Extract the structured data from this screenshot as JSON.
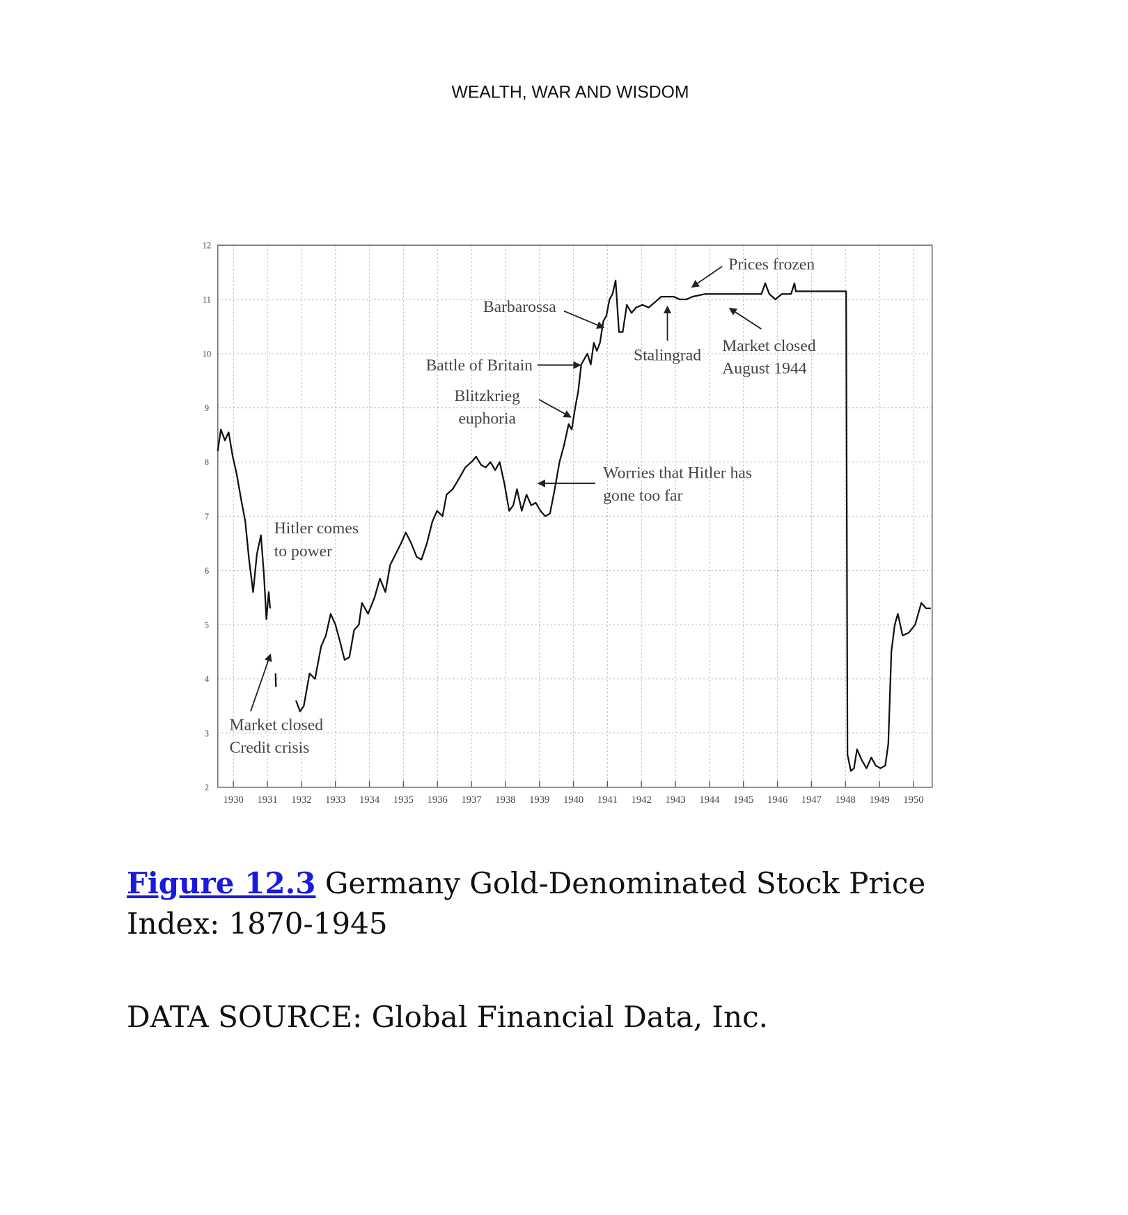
{
  "header": "WEALTH, WAR AND WISDOM",
  "figure_label": "Figure 12.3",
  "caption": "Germany Gold-Denominated Stock Price Index: 1870-1945",
  "source": "DATA SOURCE: Global Financial Data, Inc.",
  "chart_data": {
    "type": "line",
    "xlim": [
      1929.54,
      1950.55
    ],
    "ylim": [
      2,
      12
    ],
    "xticks": [
      1930,
      1931,
      1932,
      1933,
      1934,
      1935,
      1936,
      1937,
      1938,
      1939,
      1940,
      1941,
      1942,
      1943,
      1944,
      1945,
      1946,
      1947,
      1948,
      1949,
      1950
    ],
    "yticks": [
      2,
      3,
      4,
      5,
      6,
      7,
      8,
      9,
      10,
      11,
      12
    ],
    "grid": true,
    "series": [
      {
        "color": "#111111",
        "x": [
          1929.54,
          1929.63,
          1929.75,
          1929.86,
          1929.98,
          1930.09,
          1930.23,
          1930.35,
          1930.46,
          1930.58,
          1930.69,
          1930.81,
          1930.9,
          1930.97,
          1931.04,
          1931.08,
          1931.16,
          1931.24,
          1931.25,
          1931.5,
          1931.84,
          1931.96,
          1932.07,
          1932.24,
          1932.4,
          1932.58,
          1932.72,
          1932.86,
          1933.0,
          1933.13,
          1933.27,
          1933.41,
          1933.55,
          1933.69,
          1933.78,
          1933.96,
          1934.15,
          1934.31,
          1934.47,
          1934.61,
          1934.77,
          1934.93,
          1935.07,
          1935.23,
          1935.39,
          1935.53,
          1935.69,
          1935.85,
          1935.99,
          1936.15,
          1936.27,
          1936.45,
          1936.64,
          1936.82,
          1937.0,
          1937.14,
          1937.28,
          1937.42,
          1937.56,
          1937.7,
          1937.83,
          1937.97,
          1938.11,
          1938.23,
          1938.34,
          1938.48,
          1938.62,
          1938.76,
          1938.89,
          1939.03,
          1939.17,
          1939.31,
          1939.45,
          1939.59,
          1939.72,
          1939.86,
          1939.95,
          1940.05,
          1940.14,
          1940.23,
          1940.32,
          1940.41,
          1940.51,
          1940.6,
          1940.69,
          1940.78,
          1940.88,
          1940.97,
          1941.06,
          1941.15,
          1941.24,
          1941.34,
          1941.45,
          1941.57,
          1941.71,
          1941.84,
          1942.03,
          1942.21,
          1942.4,
          1942.58,
          1942.76,
          1942.95,
          1943.13,
          1943.32,
          1943.5,
          1943.87,
          1944.79,
          1945.53,
          1945.64,
          1945.76,
          1945.94,
          1946.13,
          1946.4,
          1946.5,
          1946.54,
          1947.33,
          1948.02,
          1948.06,
          1948.16,
          1948.25,
          1948.34,
          1948.48,
          1948.62,
          1948.76,
          1948.89,
          1949.03,
          1949.17,
          1949.26,
          1949.35,
          1949.45,
          1949.54,
          1949.68,
          1949.86,
          1950.05,
          1950.23,
          1950.37,
          1950.51
        ],
        "values": [
          8.2,
          8.6,
          8.4,
          8.55,
          8.1,
          7.8,
          7.3,
          6.9,
          6.2,
          5.6,
          6.3,
          6.65,
          5.9,
          5.1,
          5.6,
          5.3,
          null,
          4.1,
          3.85,
          null,
          3.6,
          3.4,
          3.5,
          4.1,
          4.0,
          4.6,
          4.8,
          5.2,
          5.0,
          4.7,
          4.35,
          4.4,
          4.9,
          5.0,
          5.4,
          5.2,
          5.5,
          5.85,
          5.6,
          6.1,
          6.3,
          6.5,
          6.7,
          6.5,
          6.25,
          6.2,
          6.5,
          6.9,
          7.1,
          7.0,
          7.4,
          7.5,
          7.7,
          7.9,
          8.0,
          8.1,
          7.95,
          7.9,
          8.0,
          7.85,
          8.0,
          7.6,
          7.1,
          7.2,
          7.5,
          7.1,
          7.4,
          7.2,
          7.25,
          7.1,
          7.0,
          7.05,
          7.5,
          8.0,
          8.3,
          8.7,
          8.6,
          9.0,
          9.3,
          9.8,
          9.9,
          10.0,
          9.8,
          10.2,
          10.05,
          10.2,
          10.6,
          10.7,
          11.0,
          11.1,
          11.35,
          10.4,
          10.4,
          10.9,
          10.75,
          10.85,
          10.9,
          10.85,
          10.95,
          11.05,
          11.05,
          11.05,
          11.0,
          11.0,
          11.05,
          11.1,
          11.1,
          11.1,
          11.3,
          11.1,
          11.0,
          11.1,
          11.1,
          11.3,
          11.15,
          11.15,
          11.15,
          2.6,
          2.3,
          2.35,
          2.7,
          2.5,
          2.35,
          2.55,
          2.4,
          2.35,
          2.4,
          2.8,
          4.5,
          5.0,
          5.2,
          4.8,
          4.85,
          5.0,
          5.4,
          5.3,
          5.3
        ]
      }
    ],
    "annotations": [
      [
        "Prices frozen"
      ],
      [
        "Barbarossa"
      ],
      [
        "Stalingrad"
      ],
      [
        "Market closed",
        "August 1944"
      ],
      [
        "Battle of Britain"
      ],
      [
        "Blitzkrieg",
        "euphoria"
      ],
      [
        "Worries that Hitler has",
        "gone too far"
      ],
      [
        "Hitler comes",
        "to power"
      ],
      [
        "Market closed",
        "Credit crisis"
      ]
    ]
  }
}
